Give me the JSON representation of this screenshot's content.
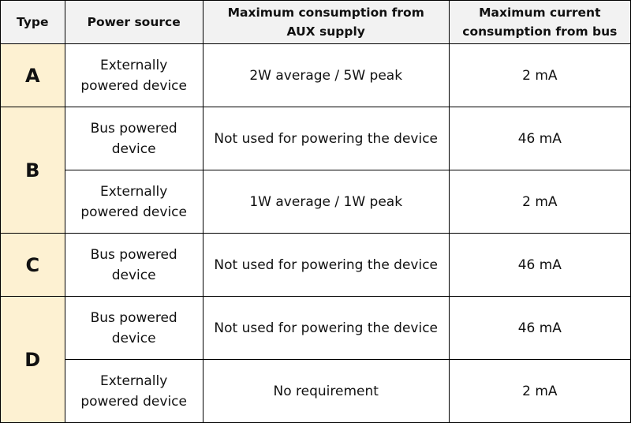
{
  "headers": {
    "type": "Type",
    "power_source": "Power source",
    "aux": "Maximum consumption from\nAUX supply",
    "bus": "Maximum current\nconsumption from bus"
  },
  "groups": [
    {
      "type": "A",
      "rows": [
        {
          "power_source": "Externally\npowered device",
          "aux": "2W average / 5W peak",
          "bus": "2 mA"
        }
      ]
    },
    {
      "type": "B",
      "rows": [
        {
          "power_source": "Bus powered\ndevice",
          "aux": "Not used for powering the device",
          "bus": "46 mA"
        },
        {
          "power_source": "Externally\npowered device",
          "aux": "1W average / 1W peak",
          "bus": "2 mA"
        }
      ]
    },
    {
      "type": "C",
      "rows": [
        {
          "power_source": "Bus powered\ndevice",
          "aux": "Not used for powering the device",
          "bus": "46 mA"
        }
      ]
    },
    {
      "type": "D",
      "rows": [
        {
          "power_source": "Bus powered\ndevice",
          "aux": "Not used for powering the device",
          "bus": "46 mA"
        },
        {
          "power_source": "Externally\npowered device",
          "aux": "No requirement",
          "bus": "2 mA"
        }
      ]
    }
  ],
  "colors": {
    "type_cell_bg": "#fdf1d2",
    "header_bg": "#f2f2f2",
    "border": "#000000"
  }
}
